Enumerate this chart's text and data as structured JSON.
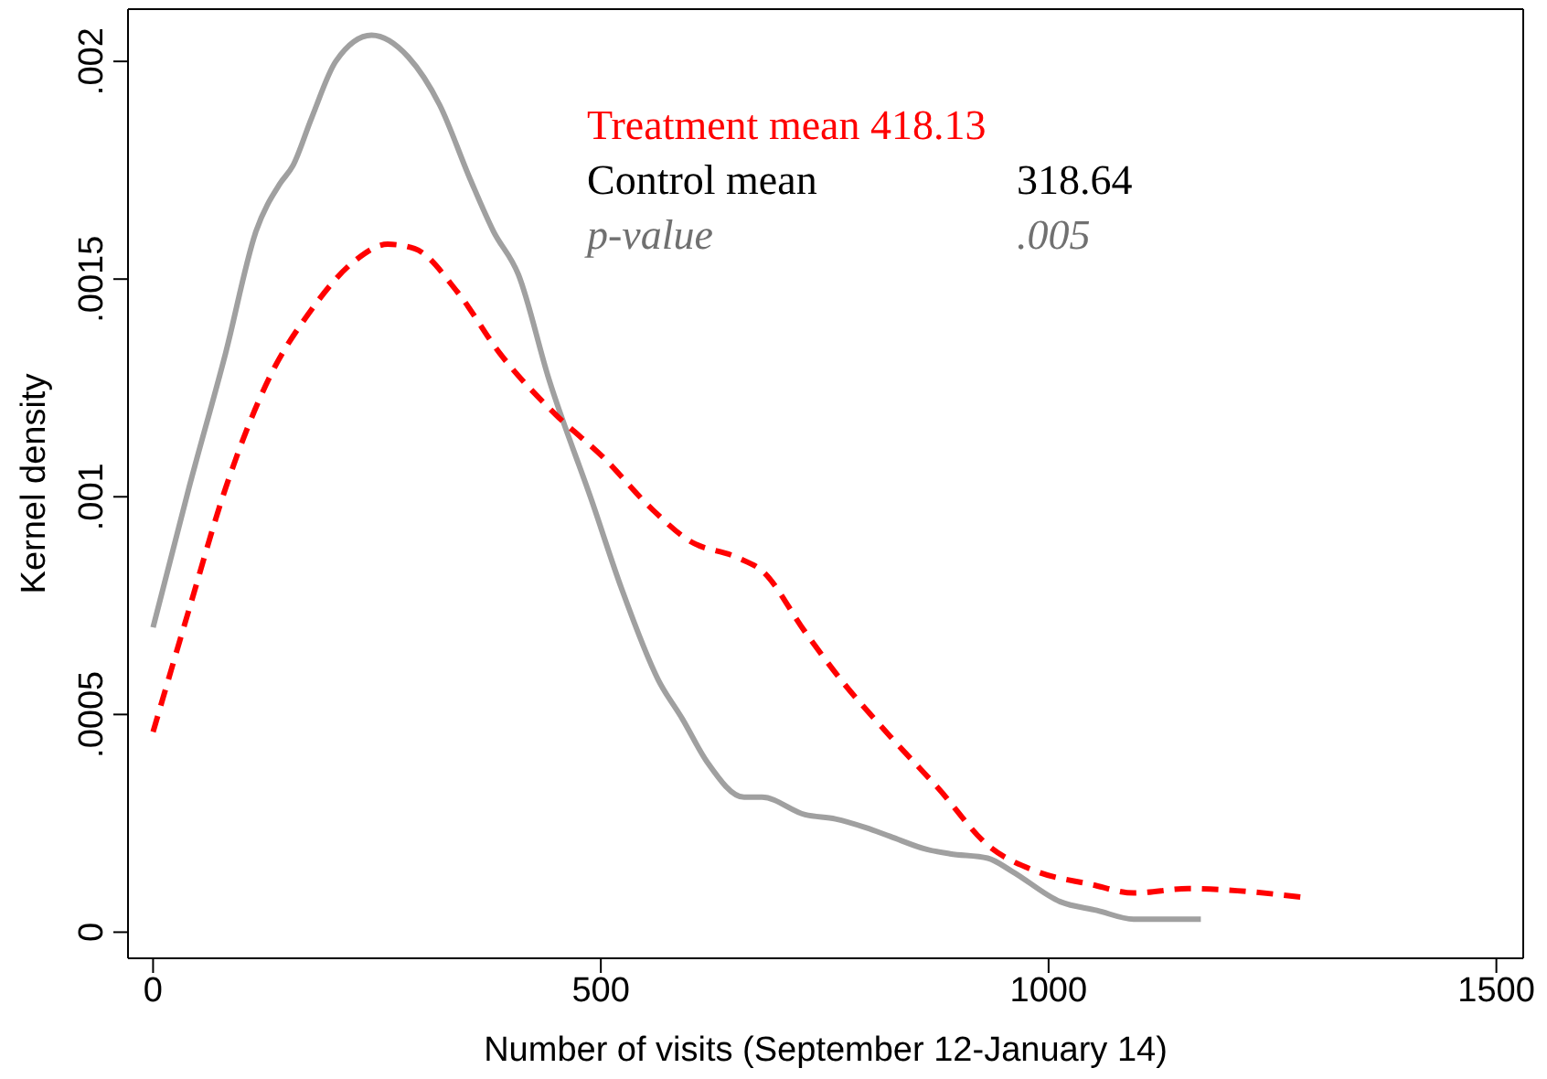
{
  "chart_data": {
    "type": "line",
    "xlabel": "Number of visits (September 12-January 14)",
    "ylabel": "Kernel density",
    "xlim": [
      -28,
      1530
    ],
    "xticks": [
      0,
      500,
      1000,
      1500
    ],
    "ylim": [
      -6e-05,
      0.00212
    ],
    "yticks": [
      {
        "value": 0,
        "label": "0"
      },
      {
        "value": 0.0005,
        "label": ".0005"
      },
      {
        "value": 0.001,
        "label": ".001"
      },
      {
        "value": 0.0015,
        "label": ".0015"
      },
      {
        "value": 0.002,
        "label": ".002"
      }
    ],
    "marker": "none",
    "annotations": [
      "Treatment mean 418.13",
      "Control mean",
      "318.64",
      "p-value",
      ".005"
    ],
    "series": [
      {
        "color": "#a0a0a0",
        "line_style": "solid",
        "x": [
          0,
          40,
          81,
          115,
          142,
          156,
          177,
          204,
          244,
          285,
          320,
          354,
          380,
          408,
          442,
          490,
          523,
          564,
          591,
          619,
          660,
          680,
          728,
          762,
          796,
          823,
          864,
          890,
          932,
          959,
          1013,
          1054,
          1095,
          1170
        ],
        "values": [
          0.0007,
          0.00102,
          0.00133,
          0.00161,
          0.00172,
          0.00176,
          0.00187,
          0.002,
          0.00206,
          0.00201,
          0.0019,
          0.00173,
          0.00161,
          0.00151,
          0.00127,
          0.00099,
          0.00079,
          0.00058,
          0.00049,
          0.00039,
          0.00031,
          0.00031,
          0.00027,
          0.00026,
          0.00024,
          0.00022,
          0.00019,
          0.00018,
          0.00017,
          0.00014,
          7e-05,
          5e-05,
          3e-05,
          3e-05
        ]
      },
      {
        "color": "#ff0000",
        "line_style": "dashed",
        "x": [
          0,
          40,
          81,
          129,
          177,
          224,
          262,
          292,
          340,
          387,
          449,
          503,
          558,
          598,
          653,
          680,
          728,
          768,
          823,
          877,
          932,
          986,
          1047,
          1095,
          1156,
          1285
        ],
        "values": [
          0.00046,
          0.00074,
          0.00102,
          0.00127,
          0.00143,
          0.00154,
          0.00158,
          0.00157,
          0.00147,
          0.00133,
          0.00119,
          0.00109,
          0.00097,
          0.0009,
          0.00086,
          0.00083,
          0.00069,
          0.00058,
          0.00045,
          0.00033,
          0.0002,
          0.00014,
          0.00011,
          9e-05,
          0.0001,
          8e-05
        ]
      }
    ]
  }
}
